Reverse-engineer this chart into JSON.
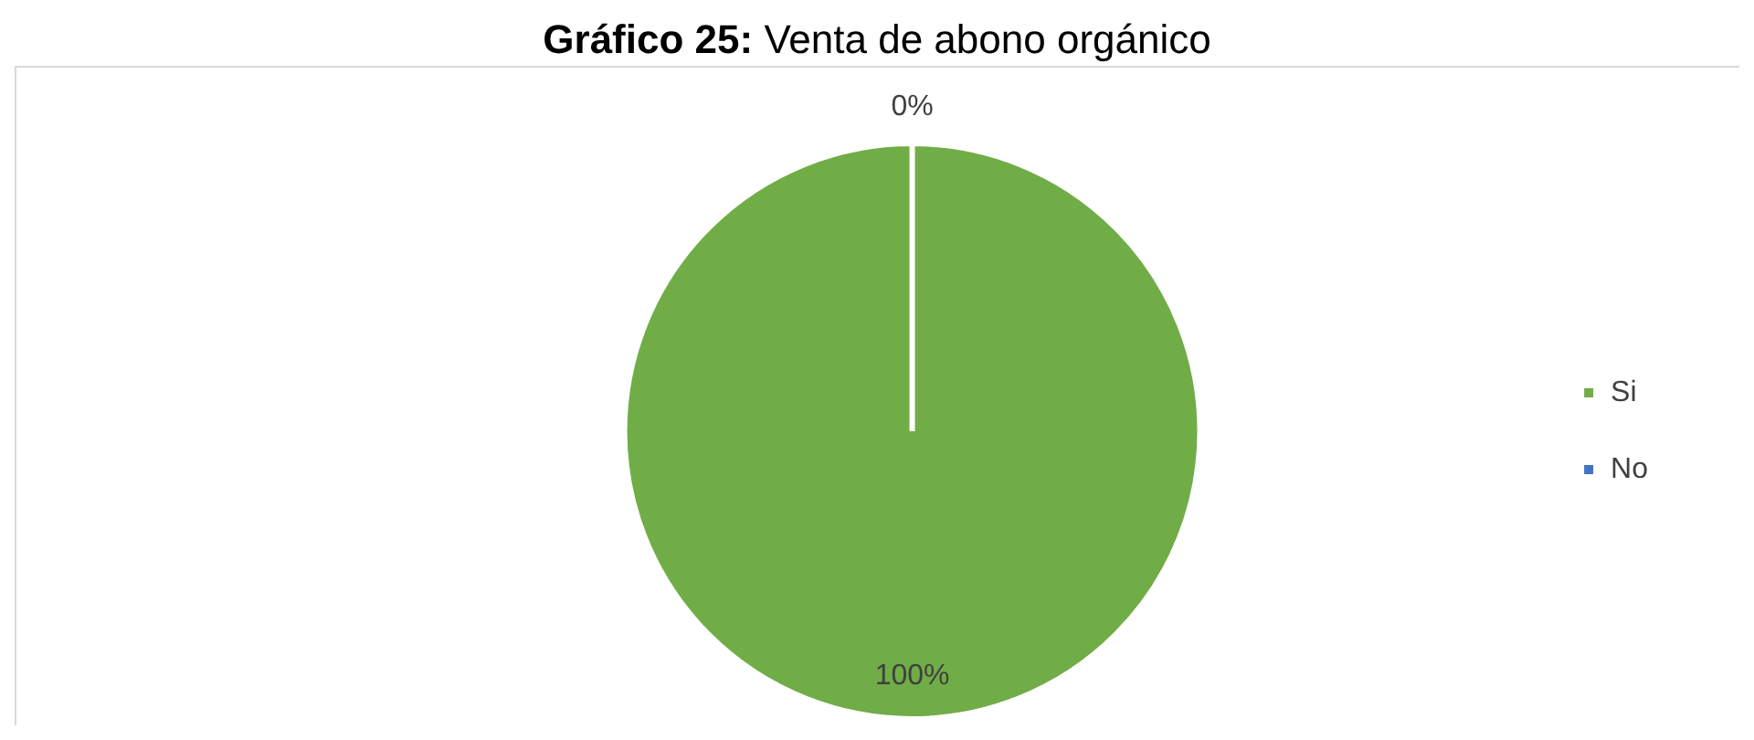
{
  "chart_data": {
    "type": "pie",
    "title": "Gráfico 25: Venta de abono orgánico",
    "categories": [
      "Si",
      "No"
    ],
    "values": [
      100,
      0
    ],
    "colors": [
      "#70ad47",
      "#4472c4"
    ],
    "value_labels": [
      "100%",
      "0%"
    ],
    "legend": "right"
  }
}
